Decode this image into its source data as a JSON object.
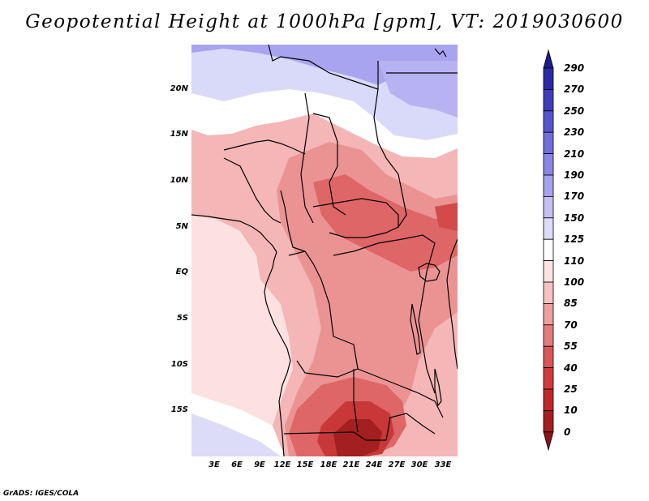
{
  "title": "Geopotential Height at 1000hPa [gpm], VT: 2019030600",
  "credit": "GrADS: IGES/COLA",
  "lat_labels": [
    "20N",
    "15N",
    "10N",
    "5N",
    "EQ",
    "5S",
    "10S",
    "15S"
  ],
  "lon_labels": [
    "3E",
    "6E",
    "9E",
    "12E",
    "15E",
    "18E",
    "21E",
    "24E",
    "27E",
    "30E",
    "33E"
  ],
  "colorbar": {
    "labels": [
      "290",
      "270",
      "250",
      "230",
      "210",
      "190",
      "170",
      "150",
      "125",
      "110",
      "100",
      "85",
      "70",
      "55",
      "40",
      "25",
      "10",
      "0"
    ],
    "colors": [
      "#1e1a8c",
      "#2b2aa6",
      "#3d3dbc",
      "#5555cf",
      "#6e6ede",
      "#8a86e8",
      "#a6a2f0",
      "#c3c0f5",
      "#dcdcf8",
      "#ffffff",
      "#fde3e3",
      "#f7c1c1",
      "#ef9f9f",
      "#e57c7c",
      "#db5656",
      "#d23a3a",
      "#c22727",
      "#a61e1e",
      "#8a1414"
    ]
  },
  "map": {
    "region": "Central and Southern Africa",
    "lon_range": [
      0,
      35
    ],
    "lat_range": [
      -20,
      25
    ],
    "field_colors": {
      "blue_north": "#a9a4ef",
      "pale_blue": "#d9d9f9",
      "white_band": "#ffffff",
      "pale_red": "#fde1e1",
      "light_red": "#f4b6b6",
      "mid_red": "#eb9393",
      "red": "#de6666",
      "deep_red": "#c83838",
      "darkest_red": "#a41f1f"
    }
  }
}
